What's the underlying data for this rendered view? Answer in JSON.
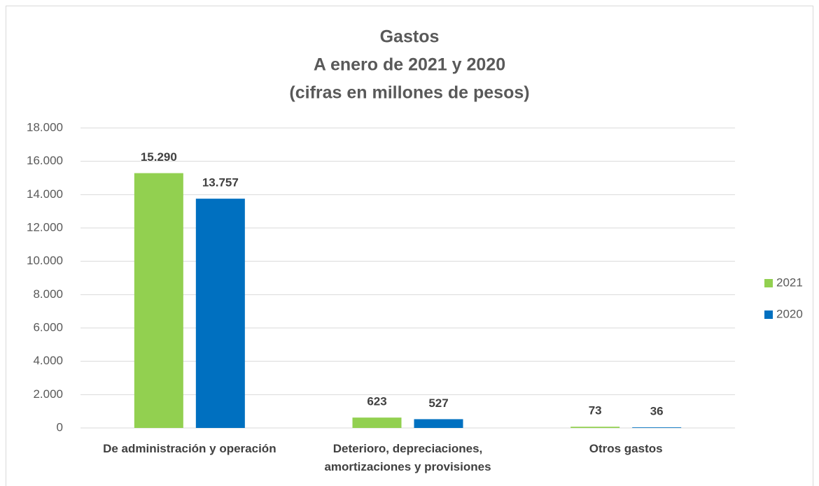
{
  "chart_data": {
    "type": "bar",
    "title": "Gastos",
    "subtitle": [
      "A enero de 2021 y 2020",
      "(cifras en millones de pesos)"
    ],
    "categories": [
      "De administración y operación",
      "Deterioro, depreciaciones, amortizaciones y provisiones",
      "Otros gastos"
    ],
    "series": [
      {
        "name": "2021",
        "color": "#92d050",
        "values": [
          15290,
          623,
          73
        ],
        "value_labels": [
          "15.290",
          "623",
          "73"
        ]
      },
      {
        "name": "2020",
        "color": "#0070c0",
        "values": [
          13757,
          527,
          36
        ],
        "value_labels": [
          "13.757",
          "527",
          "36"
        ]
      }
    ],
    "ylim": [
      0,
      18000
    ],
    "yticks": [
      0,
      {
        "value": 2000,
        "label": "2.000"
      },
      {
        "value": 4000,
        "label": "4.000"
      },
      {
        "value": 6000,
        "label": "6.000"
      },
      {
        "value": 8000,
        "label": "8.000"
      },
      {
        "value": 10000,
        "label": "10.000"
      },
      {
        "value": 12000,
        "label": "12.000"
      },
      {
        "value": 14000,
        "label": "14.000"
      },
      {
        "value": 16000,
        "label": "16.000"
      },
      {
        "value": 18000,
        "label": "18.000"
      }
    ],
    "grid": true,
    "legend": "right"
  }
}
